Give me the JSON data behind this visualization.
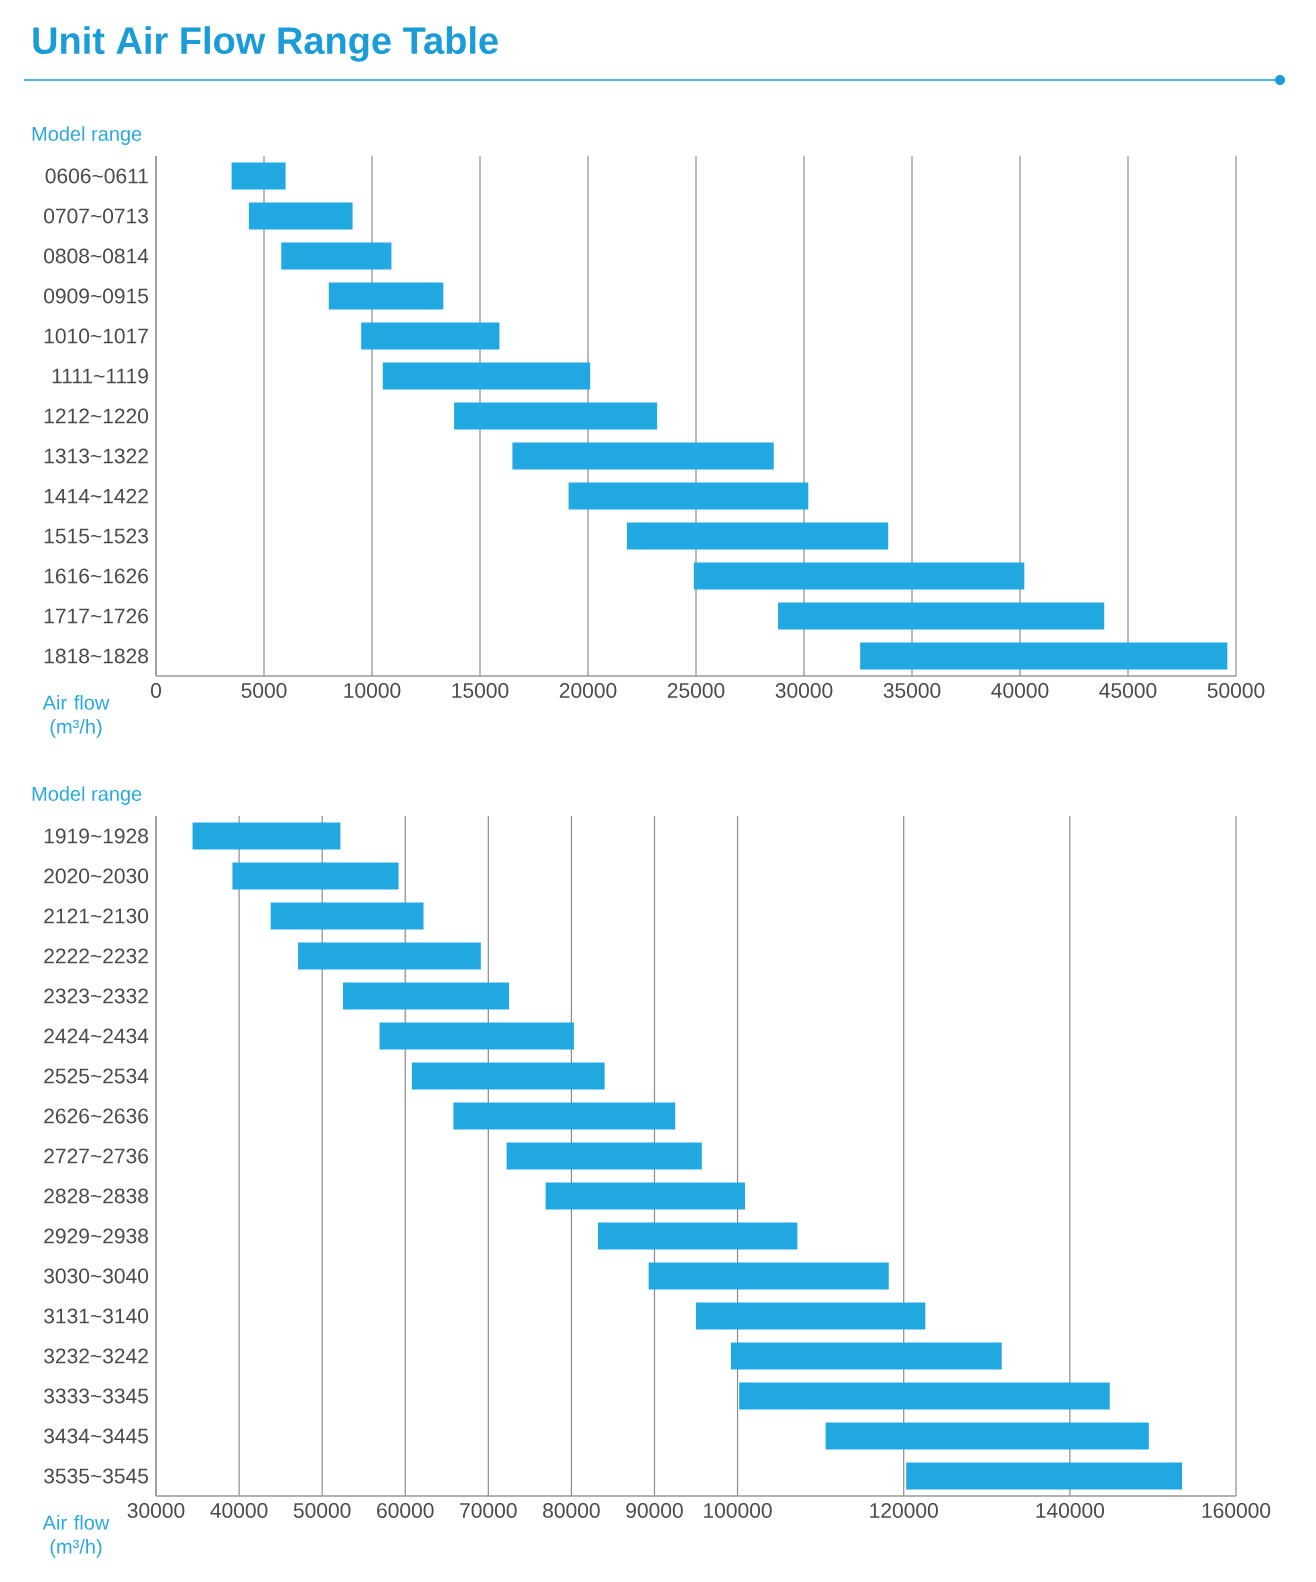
{
  "chart_data": [
    {
      "type": "bar",
      "orientation": "horizontal",
      "title": "Unit Air Flow Range Table",
      "ylabel": "Model range",
      "xlabel": "Air flow (m³/h)",
      "color": "#22a8e0",
      "grid": "x",
      "categories": [
        "0606~0611",
        "0707~0713",
        "0808~0814",
        "0909~0915",
        "1010~1017",
        "1111~1119",
        "1212~1220",
        "1313~1322",
        "1414~1422",
        "1515~1523",
        "1616~1626",
        "1717~1726",
        "1818~1828"
      ],
      "base": [
        3500,
        4300,
        5800,
        8000,
        9500,
        10500,
        13800,
        16500,
        19100,
        21800,
        24900,
        28800,
        32600
      ],
      "values": [
        2500,
        4800,
        5100,
        5300,
        6400,
        9600,
        9400,
        12100,
        11100,
        12100,
        15300,
        15100,
        17000
      ],
      "xlim": [
        0,
        50000
      ],
      "xticks": [
        0,
        5000,
        10000,
        15000,
        20000,
        25000,
        30000,
        35000,
        40000,
        45000,
        50000
      ]
    },
    {
      "type": "bar",
      "orientation": "horizontal",
      "ylabel": "Model range",
      "xlabel": "Air flow (m³/h)",
      "color": "#22a8e0",
      "grid": "x",
      "categories": [
        "1919~1928",
        "2020~2030",
        "2121~2130",
        "2222~2232",
        "2323~2332",
        "2424~2434",
        "2525~2534",
        "2626~2636",
        "2727~2736",
        "2828~2838",
        "2929~2938",
        "3030~3040",
        "3131~3140",
        "3232~3242",
        "3333~3345",
        "3434~3445",
        "3535~3545"
      ],
      "base": [
        34400,
        39200,
        43800,
        47100,
        52500,
        56900,
        60800,
        65800,
        72200,
        76900,
        83200,
        89300,
        95000,
        99200,
        100200,
        110600,
        120300
      ],
      "values": [
        17800,
        20000,
        18400,
        22000,
        20000,
        23400,
        23200,
        26700,
        23500,
        24000,
        24000,
        28900,
        27600,
        32600,
        44600,
        38900,
        33200
      ],
      "xlim": [
        30000,
        160000
      ],
      "xticks": [
        30000,
        40000,
        50000,
        60000,
        70000,
        80000,
        90000,
        100000,
        120000,
        140000,
        160000
      ]
    }
  ]
}
